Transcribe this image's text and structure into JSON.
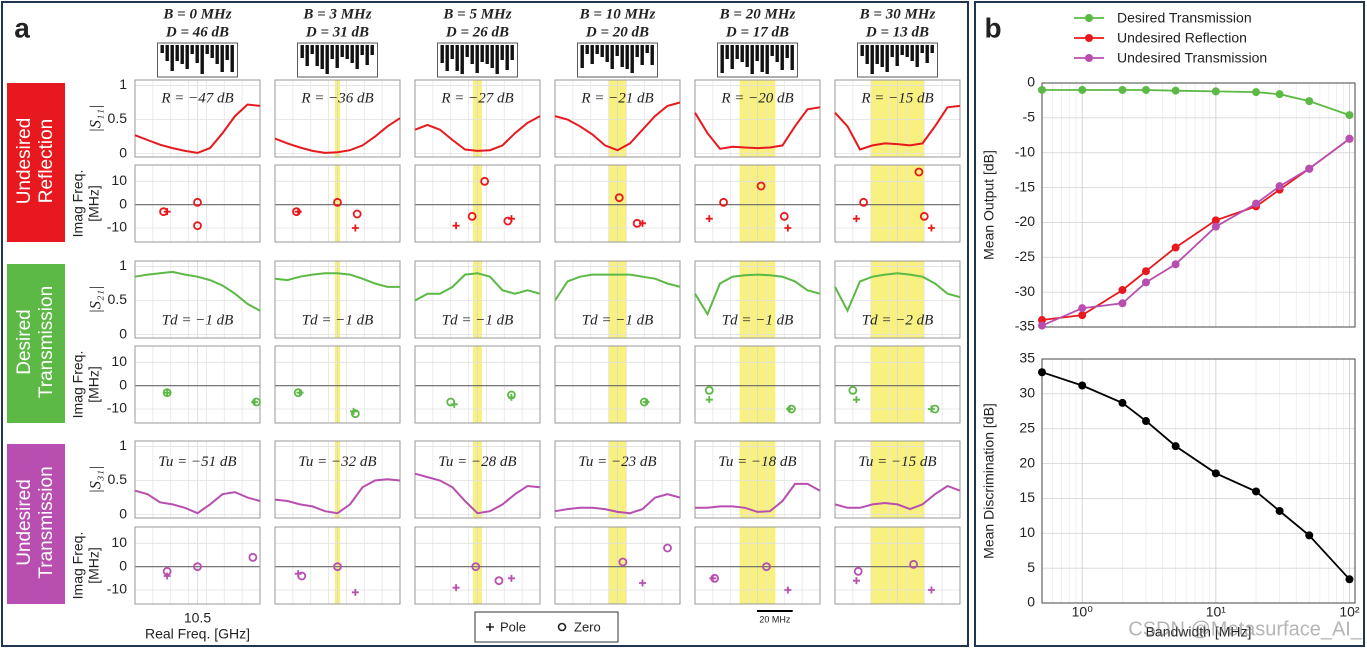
{
  "panel_a": {
    "label": "a",
    "x": [
      10.465,
      10.472,
      10.479,
      10.486,
      10.493,
      10.5,
      10.507,
      10.514,
      10.521,
      10.528,
      10.535
    ],
    "xlim": [
      10.465,
      10.535
    ],
    "xticks": [
      10.5
    ],
    "xlabel": "Real Freq. [GHz]",
    "mag_ylim": [
      -0.05,
      1.08
    ],
    "mag_yticks": [
      0,
      0.5,
      1
    ],
    "pz_ylim": [
      -16,
      17
    ],
    "pz_yticks": [
      -10,
      0,
      10
    ],
    "pz_ylabel": [
      "Imag Freq.",
      "[MHz]"
    ],
    "legend": {
      "pole": "Pole",
      "zero": "Zero"
    },
    "scale_bar": {
      "value": 0.02,
      "label": "20 MHz"
    },
    "columns": [
      {
        "B": "B = 0 MHz",
        "D": "D = 46 dB",
        "band": null
      },
      {
        "B": "B = 3 MHz",
        "D": "D = 31 dB",
        "band": [
          10.4985,
          10.5015
        ]
      },
      {
        "B": "B = 5 MHz",
        "D": "D = 26 dB",
        "band": [
          10.4975,
          10.5025
        ]
      },
      {
        "B": "B = 10 MHz",
        "D": "D = 20 dB",
        "band": [
          10.495,
          10.505
        ]
      },
      {
        "B": "B = 20 MHz",
        "D": "D = 17 dB",
        "band": [
          10.49,
          10.51
        ]
      },
      {
        "B": "B = 30 MHz",
        "D": "D = 13 dB",
        "band": [
          10.485,
          10.515
        ]
      }
    ],
    "groups": [
      {
        "name": [
          "Undesired",
          "Reflection"
        ],
        "color": "#e8191e",
        "ylabel": "|S₁₁|",
        "annotations": [
          "R = −47 dB",
          "R = −36 dB",
          "R = −27 dB",
          "R = −21 dB",
          "R = −20 dB",
          "R = −15 dB"
        ],
        "curves": [
          [
            0.27,
            0.2,
            0.13,
            0.08,
            0.04,
            0.01,
            0.08,
            0.3,
            0.55,
            0.72,
            0.7
          ],
          [
            0.22,
            0.15,
            0.09,
            0.04,
            0.01,
            0.02,
            0.05,
            0.12,
            0.25,
            0.4,
            0.52
          ],
          [
            0.35,
            0.42,
            0.35,
            0.2,
            0.06,
            0.04,
            0.05,
            0.12,
            0.3,
            0.45,
            0.55
          ],
          [
            0.55,
            0.5,
            0.4,
            0.28,
            0.12,
            0.05,
            0.15,
            0.35,
            0.55,
            0.7,
            0.75
          ],
          [
            0.6,
            0.3,
            0.07,
            0.1,
            0.09,
            0.08,
            0.09,
            0.12,
            0.4,
            0.65,
            0.68
          ],
          [
            0.6,
            0.4,
            0.06,
            0.12,
            0.15,
            0.14,
            0.12,
            0.15,
            0.4,
            0.68,
            0.7
          ]
        ],
        "pz": [
          {
            "poles_x": [
              10.483
            ],
            "poles_y": [
              -3
            ],
            "zeros_x": [
              10.481,
              10.5,
              10.5
            ],
            "zeros_y": [
              -3,
              1,
              -9
            ]
          },
          {
            "poles_x": [
              10.478,
              10.51
            ],
            "poles_y": [
              -3,
              -10
            ],
            "zeros_x": [
              10.477,
              10.5,
              10.511
            ],
            "zeros_y": [
              -3,
              1,
              -4
            ]
          },
          {
            "poles_x": [
              10.488,
              10.519
            ],
            "poles_y": [
              -9,
              -6
            ],
            "zeros_x": [
              10.497,
              10.504,
              10.517
            ],
            "zeros_y": [
              -5,
              10,
              -7
            ]
          },
          {
            "poles_x": [
              10.514
            ],
            "poles_y": [
              -8
            ],
            "zeros_x": [
              10.501,
              10.511
            ],
            "zeros_y": [
              3,
              -8
            ]
          },
          {
            "poles_x": [
              10.473,
              10.517
            ],
            "poles_y": [
              -6,
              -10
            ],
            "zeros_x": [
              10.481,
              10.502,
              10.515
            ],
            "zeros_y": [
              1,
              8,
              -5
            ]
          },
          {
            "poles_x": [
              10.477,
              10.519
            ],
            "poles_y": [
              -6,
              -10
            ],
            "zeros_x": [
              10.481,
              10.512,
              10.515
            ],
            "zeros_y": [
              1,
              14,
              -5
            ]
          }
        ]
      },
      {
        "name": [
          "Desired",
          "Transmission"
        ],
        "color": "#5cb946",
        "ylabel": "|S₂₁|",
        "annotations": [
          "Td = −1 dB",
          "Td = −1 dB",
          "Td = −1 dB",
          "Td = −1 dB",
          "Td = −1 dB",
          "Td = −2 dB"
        ],
        "curves": [
          [
            0.85,
            0.88,
            0.9,
            0.92,
            0.88,
            0.85,
            0.8,
            0.72,
            0.6,
            0.45,
            0.35
          ],
          [
            0.82,
            0.8,
            0.85,
            0.88,
            0.9,
            0.9,
            0.88,
            0.82,
            0.75,
            0.7,
            0.7
          ],
          [
            0.5,
            0.6,
            0.6,
            0.7,
            0.88,
            0.9,
            0.85,
            0.65,
            0.6,
            0.65,
            0.6
          ],
          [
            0.5,
            0.78,
            0.85,
            0.88,
            0.88,
            0.88,
            0.88,
            0.85,
            0.82,
            0.75,
            0.7
          ],
          [
            0.6,
            0.3,
            0.75,
            0.85,
            0.87,
            0.88,
            0.87,
            0.85,
            0.78,
            0.65,
            0.6
          ],
          [
            0.7,
            0.35,
            0.78,
            0.85,
            0.88,
            0.9,
            0.88,
            0.85,
            0.75,
            0.6,
            0.55
          ]
        ],
        "pz": [
          {
            "poles_x": [
              10.483,
              10.532
            ],
            "poles_y": [
              -3,
              -7
            ],
            "zeros_x": [
              10.483,
              10.533
            ],
            "zeros_y": [
              -3,
              -7
            ]
          },
          {
            "poles_x": [
              10.479,
              10.509
            ],
            "poles_y": [
              -3,
              -11
            ],
            "zeros_x": [
              10.478,
              10.51
            ],
            "zeros_y": [
              -3,
              -12
            ]
          },
          {
            "poles_x": [
              10.487,
              10.519
            ],
            "poles_y": [
              -8,
              -5
            ],
            "zeros_x": [
              10.485,
              10.519
            ],
            "zeros_y": [
              -7,
              -4
            ]
          },
          {
            "poles_x": [
              10.516
            ],
            "poles_y": [
              -7
            ],
            "zeros_x": [
              10.515
            ],
            "zeros_y": [
              -7
            ]
          },
          {
            "poles_x": [
              10.473,
              10.518
            ],
            "poles_y": [
              -6,
              -10
            ],
            "zeros_x": [
              10.473,
              10.519
            ],
            "zeros_y": [
              -2,
              -10
            ]
          },
          {
            "poles_x": [
              10.477,
              10.519
            ],
            "poles_y": [
              -6,
              -10
            ],
            "zeros_x": [
              10.475,
              10.521
            ],
            "zeros_y": [
              -2,
              -10
            ]
          }
        ]
      },
      {
        "name": [
          "Undesired",
          "Transmission"
        ],
        "color": "#b84fb0",
        "ylabel": "|S₃₁|",
        "annotations": [
          "Tu = −51 dB",
          "Tu = −32 dB",
          "Tu = −28 dB",
          "Tu = −23 dB",
          "Tu = −18 dB",
          "Tu = −15 dB"
        ],
        "curves": [
          [
            0.35,
            0.3,
            0.18,
            0.15,
            0.1,
            0.02,
            0.15,
            0.3,
            0.33,
            0.25,
            0.2
          ],
          [
            0.22,
            0.2,
            0.15,
            0.12,
            0.05,
            0.02,
            0.15,
            0.4,
            0.5,
            0.52,
            0.5
          ],
          [
            0.6,
            0.55,
            0.5,
            0.4,
            0.2,
            0.02,
            0.05,
            0.15,
            0.3,
            0.42,
            0.4
          ],
          [
            0.05,
            0.08,
            0.1,
            0.1,
            0.08,
            0.04,
            0.02,
            0.08,
            0.25,
            0.3,
            0.25
          ],
          [
            0.1,
            0.1,
            0.12,
            0.12,
            0.1,
            0.04,
            0.05,
            0.2,
            0.45,
            0.45,
            0.35
          ],
          [
            0.15,
            0.1,
            0.1,
            0.15,
            0.17,
            0.15,
            0.08,
            0.15,
            0.3,
            0.42,
            0.35
          ]
        ],
        "pz": [
          {
            "poles_x": [
              10.483
            ],
            "poles_y": [
              -4
            ],
            "zeros_x": [
              10.483,
              10.5,
              10.531
            ],
            "zeros_y": [
              -2,
              0,
              4
            ]
          },
          {
            "poles_x": [
              10.478,
              10.51
            ],
            "poles_y": [
              -3,
              -11
            ],
            "zeros_x": [
              10.48,
              10.5
            ],
            "zeros_y": [
              -4,
              0
            ]
          },
          {
            "poles_x": [
              10.488,
              10.519
            ],
            "poles_y": [
              -9,
              -5
            ],
            "zeros_x": [
              10.499,
              10.512
            ],
            "zeros_y": [
              0,
              -6
            ]
          },
          {
            "poles_x": [
              10.514
            ],
            "poles_y": [
              -7
            ],
            "zeros_x": [
              10.503,
              10.528
            ],
            "zeros_y": [
              2,
              8
            ]
          },
          {
            "poles_x": [
              10.475,
              10.517
            ],
            "poles_y": [
              -5,
              -10
            ],
            "zeros_x": [
              10.476,
              10.505
            ],
            "zeros_y": [
              -5,
              0
            ]
          },
          {
            "poles_x": [
              10.477,
              10.519
            ],
            "poles_y": [
              -6,
              -10
            ],
            "zeros_x": [
              10.478,
              10.509
            ],
            "zeros_y": [
              -2,
              1
            ]
          }
        ]
      }
    ]
  },
  "panel_b_label": "b",
  "watermark": "CSDN @Metasurface_AI_",
  "chart_data": [
    {
      "type": "line",
      "log_x": true,
      "grid": true,
      "legend": "above",
      "show_xtick_labels": false,
      "ylabel": "Mean Output [dB]",
      "x": [
        0.5,
        1,
        2,
        3,
        5,
        10,
        20,
        30,
        50,
        100
      ],
      "xlim": [
        0.5,
        110
      ],
      "xticks": [
        1,
        10,
        100
      ],
      "ylim": [
        -35,
        0
      ],
      "yticks": [
        0,
        -5,
        -10,
        -15,
        -20,
        -25,
        -30,
        -35
      ],
      "series": [
        {
          "name": "Desired Transmission",
          "color": "#5cb946",
          "values": [
            -1,
            -1,
            -1,
            -1,
            -1.1,
            -1.2,
            -1.3,
            -1.6,
            -2.6,
            -4.6
          ]
        },
        {
          "name": "Undesired Reflection",
          "color": "#e8191e",
          "values": [
            -34,
            -33.3,
            -29.7,
            -27,
            -23.6,
            -19.7,
            -17.7,
            -15.3,
            -12.3,
            -8
          ]
        },
        {
          "name": "Undesired Transmission",
          "color": "#b84fb0",
          "values": [
            -34.8,
            -32.3,
            -31.6,
            -28.6,
            -26,
            -20.6,
            -17.3,
            -14.8,
            -12.3,
            -8
          ]
        }
      ]
    },
    {
      "type": "line",
      "log_x": true,
      "grid": true,
      "show_xtick_labels": true,
      "ylabel": "Mean Discrimination [dB]",
      "xlabel": "Bandwidth [MHz]",
      "x": [
        0.5,
        1,
        2,
        3,
        5,
        10,
        20,
        30,
        50,
        100
      ],
      "xlim": [
        0.5,
        110
      ],
      "xticks": [
        {
          "value": 1,
          "label": "10⁰"
        },
        {
          "value": 10,
          "label": "10¹"
        },
        {
          "value": 100,
          "label": "10²"
        }
      ],
      "ylim": [
        0,
        35
      ],
      "yticks": [
        0,
        5,
        10,
        15,
        20,
        25,
        30,
        35
      ],
      "series": [
        {
          "name": "Mean Discrimination",
          "color": "#000000",
          "values": [
            33.1,
            31.2,
            28.7,
            26.1,
            22.5,
            18.6,
            16,
            13.2,
            9.7,
            3.4
          ]
        }
      ]
    }
  ]
}
